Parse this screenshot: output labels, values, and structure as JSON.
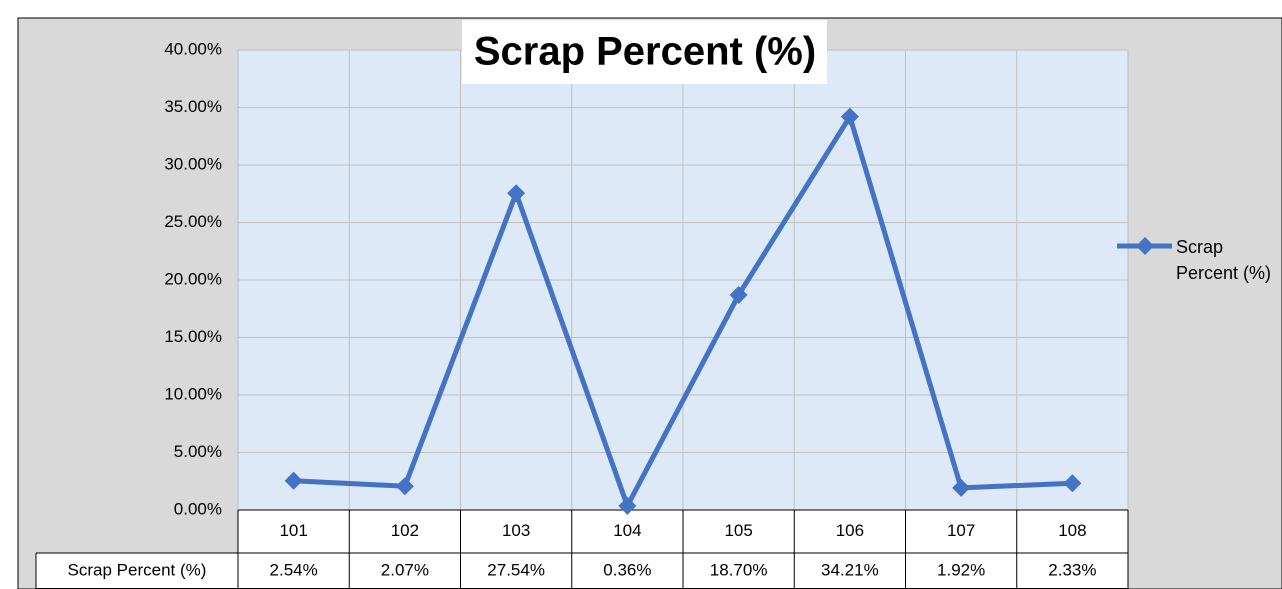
{
  "chart_data": {
    "type": "line",
    "title": "Scrap Percent (%)",
    "categories": [
      "101",
      "102",
      "103",
      "104",
      "105",
      "106",
      "107",
      "108"
    ],
    "series": [
      {
        "name": "Scrap Percent (%)",
        "color": "#4472c4",
        "values": [
          2.54,
          2.07,
          27.54,
          0.36,
          18.7,
          34.21,
          1.92,
          2.33
        ],
        "value_labels": [
          "2.54%",
          "2.07%",
          "27.54%",
          "0.36%",
          "18.70%",
          "34.21%",
          "1.92%",
          "2.33%"
        ]
      }
    ],
    "ylim": [
      0,
      40
    ],
    "yticks": [
      {
        "value": 0,
        "label": "0.00%"
      },
      {
        "value": 5,
        "label": "5.00%"
      },
      {
        "value": 10,
        "label": "10.00%"
      },
      {
        "value": 15,
        "label": "15.00%"
      },
      {
        "value": 20,
        "label": "20.00%"
      },
      {
        "value": 25,
        "label": "25.00%"
      },
      {
        "value": 30,
        "label": "30.00%"
      },
      {
        "value": 35,
        "label": "35.00%"
      },
      {
        "value": 40,
        "label": "40.00%"
      }
    ],
    "grid": true,
    "legend": "right",
    "data_table": true
  }
}
